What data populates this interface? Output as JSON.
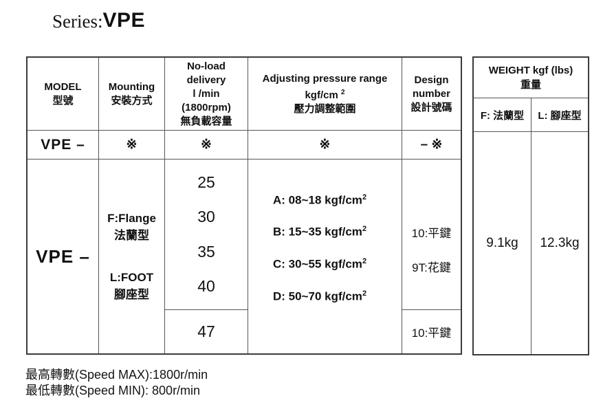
{
  "title": {
    "series_label": "Series:",
    "series_value": "VPE"
  },
  "main_table": {
    "headers": {
      "model": {
        "en": "MODEL",
        "zh": "型號"
      },
      "mounting": {
        "en": "Mounting",
        "zh": "安裝方式"
      },
      "delivery": {
        "line1": "No-load",
        "line2": "delivery",
        "line3": "l /min",
        "line4": "(1800rpm)",
        "zh": "無負載容量"
      },
      "pressure": {
        "en": "Adjusting pressure range",
        "unit": "kgf/cm",
        "unit_sup": "2",
        "zh": "壓力調整範圍"
      },
      "design": {
        "en1": "Design",
        "en2": "number",
        "zh": "設計號碼"
      }
    },
    "code_row": {
      "model": "VPE –",
      "mounting_mark": "※",
      "delivery_mark": "※",
      "pressure_mark": "※",
      "design_mark": "– ※"
    },
    "body": {
      "model": "VPE –",
      "mounting": {
        "f_label": "F:Flange",
        "f_zh": "法蘭型",
        "l_label": "L:FOOT",
        "l_zh": "腳座型"
      },
      "delivery_values": [
        "25",
        "30",
        "35",
        "40"
      ],
      "delivery_extra": "47",
      "pressure_ranges": [
        {
          "prefix": "A: 08~18 kgf/cm",
          "sup": "2"
        },
        {
          "prefix": "B: 15~35 kgf/cm",
          "sup": "2"
        },
        {
          "prefix": "C: 30~55 kgf/cm",
          "sup": "2"
        },
        {
          "prefix": "D: 50~70 kgf/cm",
          "sup": "2"
        }
      ],
      "design_upper": [
        "10:平鍵",
        "9T:花鍵"
      ],
      "design_lower": "10:平鍵"
    }
  },
  "weight_table": {
    "header_line1": "WEIGHT kgf (lbs)",
    "header_line2": "重量",
    "f_label": "F: 法蘭型",
    "l_label": "L: 腳座型",
    "f_value": "9.1kg",
    "l_value": "12.3kg"
  },
  "footnotes": {
    "speed_max": "最高轉數(Speed MAX):1800r/min",
    "speed_min": "最低轉數(Speed MIN): 800r/min"
  }
}
